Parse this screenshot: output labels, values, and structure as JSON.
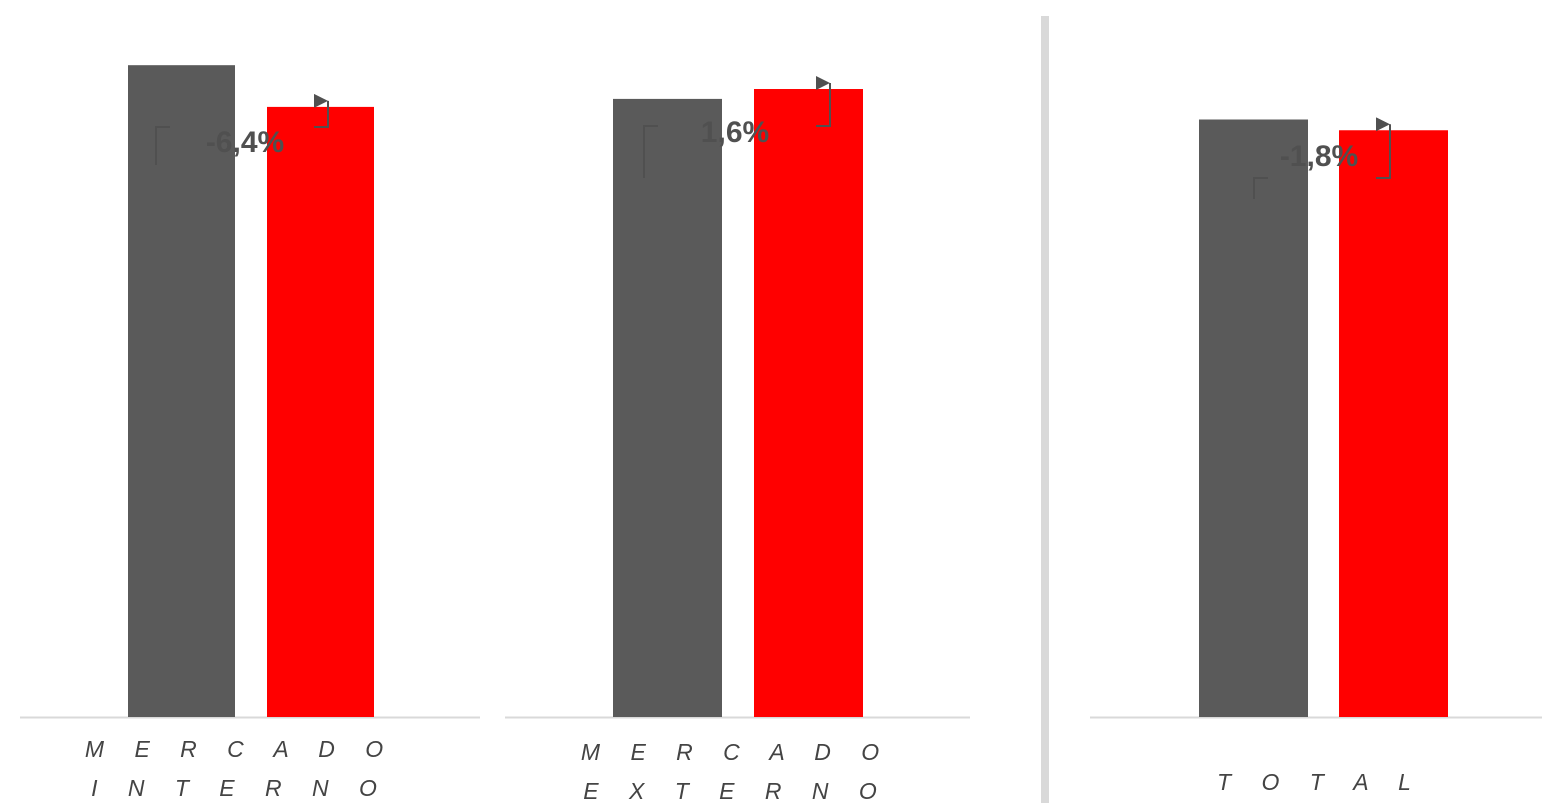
{
  "colors": {
    "bar_previous": "#5a5a5a",
    "bar_current": "#ff0000",
    "baseline": "#d9d9d9",
    "divider": "#d9d9d9",
    "connector": "#505050",
    "label_text": "#444444",
    "pct_text": "#505050"
  },
  "chart_data": [
    {
      "type": "bar",
      "categories": [
        "MERCADO INTERNO"
      ],
      "category_lines": [
        "M E R C A D O",
        "I N T E R N O"
      ],
      "series": [
        {
          "values": [
            100
          ]
        },
        {
          "values": [
            93.6
          ]
        }
      ],
      "annotation": "-6,4%",
      "ylim": [
        0,
        110
      ],
      "grid": false
    },
    {
      "type": "bar",
      "categories": [
        "MERCADO EXTERNO"
      ],
      "category_lines": [
        "M E R C A D O",
        "E X T E R N O"
      ],
      "series": [
        {
          "values": [
            100
          ]
        },
        {
          "values": [
            101.6
          ]
        }
      ],
      "annotation": "1,6%",
      "ylim": [
        0,
        116
      ],
      "grid": false
    },
    {
      "type": "bar",
      "categories": [
        "TOTAL"
      ],
      "category_lines": [
        "T O T A L"
      ],
      "series": [
        {
          "values": [
            100
          ]
        },
        {
          "values": [
            98.2
          ]
        }
      ],
      "annotation": "-1,8%",
      "ylim": [
        0,
        120
      ],
      "grid": false
    }
  ]
}
